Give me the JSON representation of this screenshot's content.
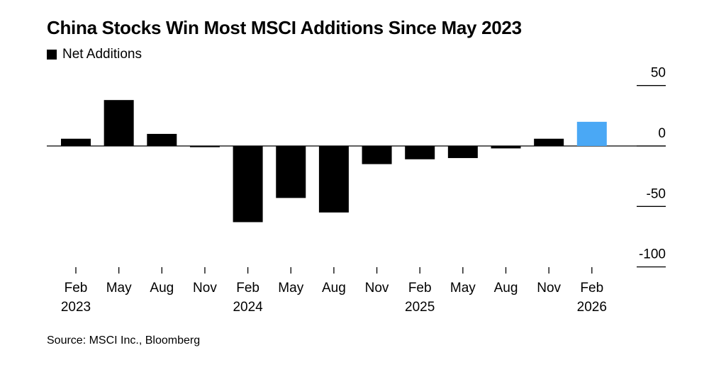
{
  "chart_data": {
    "type": "bar",
    "title": "China Stocks Win Most MSCI Additions Since May 2023",
    "legend": [
      {
        "name": "Net Additions",
        "color": "#000000"
      }
    ],
    "legend_placement": "top-left",
    "categories": [
      "Feb 2023",
      "May 2023",
      "Aug 2023",
      "Nov 2023",
      "Feb 2024",
      "May 2024",
      "Aug 2024",
      "Nov 2024",
      "Feb 2025",
      "May 2025",
      "Aug 2025",
      "Nov 2025",
      "Feb 2026"
    ],
    "x_tick_labels": [
      {
        "month": "Feb",
        "year": "2023"
      },
      {
        "month": "May",
        "year": ""
      },
      {
        "month": "Aug",
        "year": ""
      },
      {
        "month": "Nov",
        "year": ""
      },
      {
        "month": "Feb",
        "year": "2024"
      },
      {
        "month": "May",
        "year": ""
      },
      {
        "month": "Aug",
        "year": ""
      },
      {
        "month": "Nov",
        "year": ""
      },
      {
        "month": "Feb",
        "year": "2025"
      },
      {
        "month": "May",
        "year": ""
      },
      {
        "month": "Aug",
        "year": ""
      },
      {
        "month": "Nov",
        "year": ""
      },
      {
        "month": "Feb",
        "year": "2026"
      }
    ],
    "series": [
      {
        "name": "Net Additions",
        "values": [
          6,
          38,
          10,
          -1,
          -63,
          -43,
          -55,
          -15,
          -11,
          -10,
          -2,
          6,
          20
        ]
      }
    ],
    "highlight_index": 12,
    "bar_color": "#000000",
    "highlight_color": "#4aa8f5",
    "ylim": [
      -100,
      50
    ],
    "y_ticks": [
      50,
      0,
      -50,
      -100
    ],
    "y_axis_position": "right",
    "grid": false,
    "xlabel": "",
    "ylabel": ""
  },
  "source": "Source: MSCI Inc., Bloomberg"
}
